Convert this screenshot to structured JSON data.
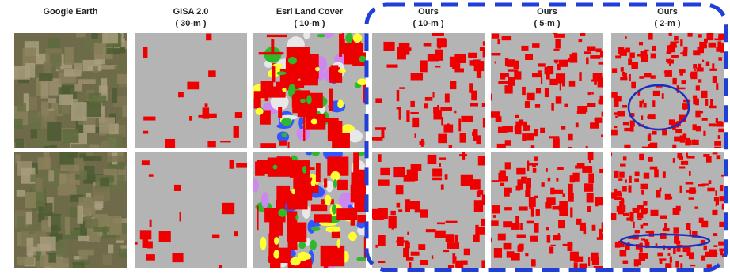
{
  "columns": [
    {
      "title": "Google Earth"
    },
    {
      "title": "GISA 2.0",
      "resolution": "( 30-m )"
    },
    {
      "title": "Esri Land Cover",
      "resolution": "( 10-m )"
    },
    {
      "title": "Ours",
      "resolution": "( 10-m )"
    },
    {
      "title": "Ours",
      "resolution": "( 5-m )"
    },
    {
      "title": "Ours",
      "resolution": "( 2-m )"
    }
  ]
}
